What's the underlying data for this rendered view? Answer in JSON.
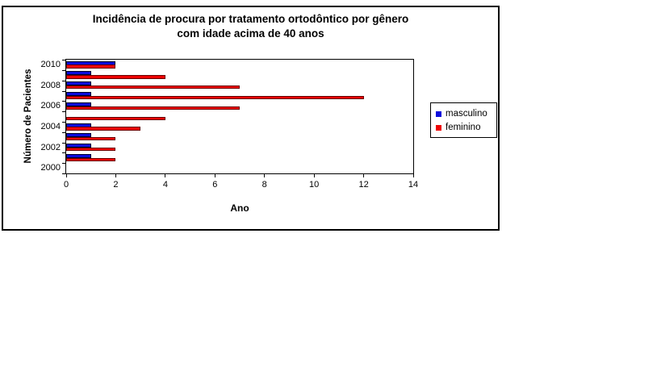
{
  "chart": {
    "title_line1": "Incidência de procura por tratamento ortodôntico por gênero",
    "title_line2": "com idade acima de 40 anos",
    "x_axis_title": "Ano",
    "y_axis_title": "Número de Pacientes"
  },
  "chart_data": {
    "type": "bar",
    "orientation": "horizontal",
    "title": "Incidência de procura por tratamento ortodôntico por gênero com idade acima de 40 anos",
    "xlabel": "Ano",
    "ylabel": "Número de Pacientes",
    "xlim": [
      0,
      14
    ],
    "x_ticks": [
      0,
      2,
      4,
      6,
      8,
      10,
      12,
      14
    ],
    "categories": [
      "2000",
      "2001",
      "2002",
      "2003",
      "2004",
      "2005",
      "2006",
      "2007",
      "2008",
      "2009",
      "2010"
    ],
    "category_labels_shown": [
      "2000",
      "2002",
      "2004",
      "2006",
      "2008",
      "2010"
    ],
    "series": [
      {
        "name": "masculino",
        "color": "#0c0cdc",
        "border_color": "#00002a",
        "values": [
          0,
          1,
          1,
          1,
          1,
          0,
          1,
          1,
          1,
          1,
          2
        ]
      },
      {
        "name": "feminino",
        "color": "#ee0404",
        "border_color": "#6a0000",
        "values": [
          0,
          2,
          2,
          2,
          3,
          4,
          7,
          12,
          7,
          4,
          2
        ]
      }
    ],
    "legend_position": "right",
    "grid": false,
    "plot_background": "#ffffff"
  }
}
